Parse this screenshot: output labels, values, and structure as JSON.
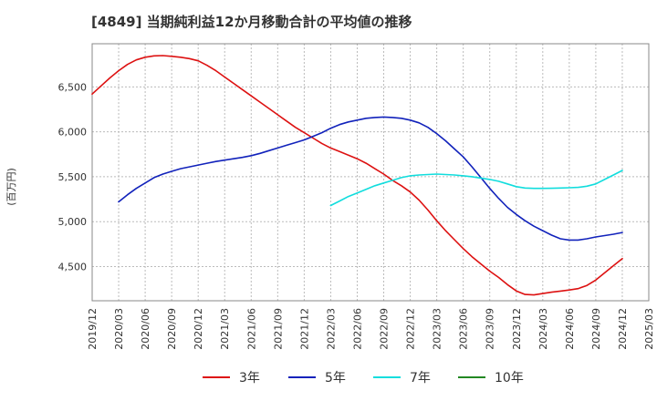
{
  "chart_data": {
    "type": "line",
    "title": "[4849]  当期純利益12か月移動合計の平均値の推移",
    "ylabel": "(百万円)",
    "xlabel": "",
    "grid": true,
    "legend_position": "bottom",
    "ylim": [
      4120,
      6980
    ],
    "y_ticks": [
      4500,
      5000,
      5500,
      6000,
      6500
    ],
    "y_tick_labels": [
      "4,500",
      "5,000",
      "5,500",
      "6,000",
      "6,500"
    ],
    "x_ticks": [
      "2019/12",
      "2020/03",
      "2020/06",
      "2020/09",
      "2020/12",
      "2021/03",
      "2021/06",
      "2021/09",
      "2021/12",
      "2022/03",
      "2022/06",
      "2022/09",
      "2022/12",
      "2023/03",
      "2023/06",
      "2023/09",
      "2023/12",
      "2024/03",
      "2024/06",
      "2024/09",
      "2024/12",
      "2025/03"
    ],
    "series": [
      {
        "name": "3年",
        "color": "#dd1111",
        "x": [
          "2019/12",
          "2020/01",
          "2020/02",
          "2020/03",
          "2020/04",
          "2020/05",
          "2020/06",
          "2020/07",
          "2020/08",
          "2020/09",
          "2020/10",
          "2020/11",
          "2020/12",
          "2021/01",
          "2021/02",
          "2021/03",
          "2021/04",
          "2021/05",
          "2021/06",
          "2021/07",
          "2021/08",
          "2021/09",
          "2021/10",
          "2021/11",
          "2021/12",
          "2022/01",
          "2022/02",
          "2022/03",
          "2022/04",
          "2022/05",
          "2022/06",
          "2022/07",
          "2022/08",
          "2022/09",
          "2022/10",
          "2022/11",
          "2022/12",
          "2023/01",
          "2023/02",
          "2023/03",
          "2023/04",
          "2023/05",
          "2023/06",
          "2023/07",
          "2023/08",
          "2023/09",
          "2023/10",
          "2023/11",
          "2023/12",
          "2024/01",
          "2024/02",
          "2024/03",
          "2024/04",
          "2024/05",
          "2024/06",
          "2024/07",
          "2024/08",
          "2024/09",
          "2024/10",
          "2024/11",
          "2024/12"
        ],
        "values": [
          6420,
          6510,
          6600,
          6680,
          6750,
          6800,
          6830,
          6845,
          6848,
          6840,
          6830,
          6815,
          6790,
          6740,
          6680,
          6610,
          6540,
          6470,
          6400,
          6330,
          6260,
          6190,
          6120,
          6050,
          5990,
          5930,
          5870,
          5820,
          5780,
          5740,
          5700,
          5650,
          5590,
          5530,
          5460,
          5400,
          5330,
          5240,
          5130,
          5010,
          4900,
          4800,
          4700,
          4610,
          4530,
          4450,
          4380,
          4300,
          4230,
          4190,
          4185,
          4200,
          4215,
          4228,
          4240,
          4255,
          4290,
          4350,
          4430,
          4510,
          4590
        ]
      },
      {
        "name": "5年",
        "color": "#1122bb",
        "x": [
          "2020/03",
          "2020/04",
          "2020/05",
          "2020/06",
          "2020/07",
          "2020/08",
          "2020/09",
          "2020/10",
          "2020/11",
          "2020/12",
          "2021/01",
          "2021/02",
          "2021/03",
          "2021/04",
          "2021/05",
          "2021/06",
          "2021/07",
          "2021/08",
          "2021/09",
          "2021/10",
          "2021/11",
          "2021/12",
          "2022/01",
          "2022/02",
          "2022/03",
          "2022/04",
          "2022/05",
          "2022/06",
          "2022/07",
          "2022/08",
          "2022/09",
          "2022/10",
          "2022/11",
          "2022/12",
          "2023/01",
          "2023/02",
          "2023/03",
          "2023/04",
          "2023/05",
          "2023/06",
          "2023/07",
          "2023/08",
          "2023/09",
          "2023/10",
          "2023/11",
          "2023/12",
          "2024/01",
          "2024/02",
          "2024/03",
          "2024/04",
          "2024/05",
          "2024/06",
          "2024/07",
          "2024/08",
          "2024/09",
          "2024/10",
          "2024/11",
          "2024/12"
        ],
        "values": [
          5220,
          5300,
          5370,
          5430,
          5490,
          5530,
          5560,
          5590,
          5610,
          5630,
          5650,
          5670,
          5685,
          5700,
          5715,
          5735,
          5760,
          5790,
          5820,
          5850,
          5880,
          5910,
          5950,
          5990,
          6040,
          6080,
          6110,
          6130,
          6150,
          6160,
          6165,
          6160,
          6150,
          6130,
          6100,
          6050,
          5980,
          5900,
          5810,
          5720,
          5610,
          5490,
          5370,
          5260,
          5160,
          5080,
          5010,
          4950,
          4900,
          4850,
          4810,
          4795,
          4795,
          4810,
          4830,
          4845,
          4860,
          4880
        ]
      },
      {
        "name": "7年",
        "color": "#11dddd",
        "x": [
          "2022/03",
          "2022/04",
          "2022/05",
          "2022/06",
          "2022/07",
          "2022/08",
          "2022/09",
          "2022/10",
          "2022/11",
          "2022/12",
          "2023/01",
          "2023/02",
          "2023/03",
          "2023/04",
          "2023/05",
          "2023/06",
          "2023/07",
          "2023/08",
          "2023/09",
          "2023/10",
          "2023/11",
          "2023/12",
          "2024/01",
          "2024/02",
          "2024/03",
          "2024/04",
          "2024/05",
          "2024/06",
          "2024/07",
          "2024/08",
          "2024/09",
          "2024/10",
          "2024/11",
          "2024/12"
        ],
        "values": [
          5180,
          5230,
          5280,
          5320,
          5360,
          5400,
          5430,
          5460,
          5490,
          5510,
          5520,
          5525,
          5530,
          5525,
          5520,
          5510,
          5500,
          5485,
          5470,
          5450,
          5420,
          5390,
          5375,
          5370,
          5370,
          5372,
          5375,
          5378,
          5382,
          5395,
          5420,
          5470,
          5520,
          5570
        ]
      },
      {
        "name": "10年",
        "color": "#228822",
        "x": [],
        "values": []
      }
    ]
  }
}
